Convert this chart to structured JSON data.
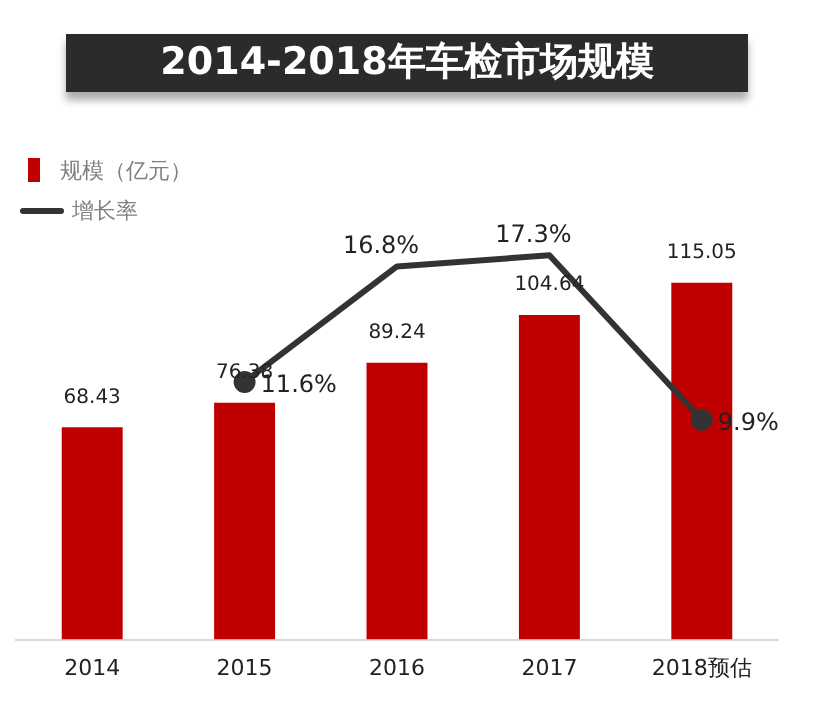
{
  "chart_data": {
    "type": "bar",
    "title": "2014-2018年车检市场规模",
    "categories": [
      "2014",
      "2015",
      "2016",
      "2017",
      "2018预估"
    ],
    "series": [
      {
        "name": "规模（亿元）",
        "color": "#c00000",
        "values": [
          68.43,
          76.38,
          89.24,
          104.64,
          115.05
        ],
        "value_labels": [
          "68.43",
          "76.38",
          "89.24",
          "104.64",
          "115.05"
        ]
      },
      {
        "name": "增长率",
        "type": "line",
        "axis": "y2",
        "color": "#333333",
        "values": [
          null,
          11.6,
          16.8,
          17.3,
          9.9
        ],
        "value_labels": [
          null,
          "11.6%",
          "16.8%",
          "17.3%",
          "9.9%"
        ]
      }
    ],
    "legend": "top left",
    "marker": "circle",
    "grid": false,
    "tick_labels": "x"
  }
}
